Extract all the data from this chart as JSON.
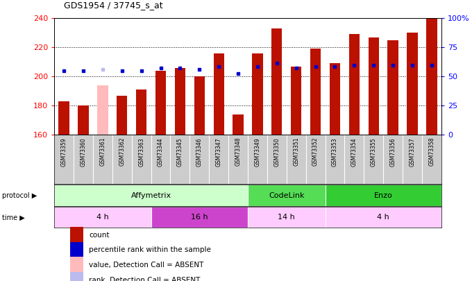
{
  "title": "GDS1954 / 37745_s_at",
  "samples": [
    "GSM73359",
    "GSM73360",
    "GSM73361",
    "GSM73362",
    "GSM73363",
    "GSM73344",
    "GSM73345",
    "GSM73346",
    "GSM73347",
    "GSM73348",
    "GSM73349",
    "GSM73350",
    "GSM73351",
    "GSM73352",
    "GSM73353",
    "GSM73354",
    "GSM73355",
    "GSM73356",
    "GSM73357",
    "GSM73358"
  ],
  "count_values": [
    183,
    180,
    194,
    187,
    191,
    204,
    206,
    200,
    216,
    174,
    216,
    233,
    207,
    219,
    209,
    229,
    227,
    225,
    230,
    240
  ],
  "count_absent": [
    false,
    false,
    true,
    false,
    false,
    false,
    false,
    false,
    false,
    false,
    false,
    false,
    false,
    false,
    false,
    false,
    false,
    false,
    false,
    false
  ],
  "percentile_values": [
    204,
    204,
    205,
    204,
    204,
    206,
    206,
    205,
    207,
    202,
    207,
    209,
    206,
    207,
    207,
    208,
    208,
    208,
    208,
    208
  ],
  "percentile_absent": [
    false,
    false,
    true,
    false,
    false,
    false,
    false,
    false,
    false,
    false,
    false,
    false,
    false,
    false,
    false,
    false,
    false,
    false,
    false,
    false
  ],
  "ylim_min": 160,
  "ylim_max": 240,
  "yticks": [
    160,
    180,
    200,
    220,
    240
  ],
  "right_yticks": [
    0,
    25,
    50,
    75,
    100
  ],
  "hlines": [
    180,
    200,
    220
  ],
  "protocols": [
    {
      "label": "Affymetrix",
      "start": 0,
      "end": 10,
      "color": "#ccffcc"
    },
    {
      "label": "CodeLink",
      "start": 10,
      "end": 14,
      "color": "#55dd55"
    },
    {
      "label": "Enzo",
      "start": 14,
      "end": 20,
      "color": "#33cc33"
    }
  ],
  "times": [
    {
      "label": "4 h",
      "start": 0,
      "end": 5,
      "color": "#ffccff"
    },
    {
      "label": "16 h",
      "start": 5,
      "end": 10,
      "color": "#cc44cc"
    },
    {
      "label": "14 h",
      "start": 10,
      "end": 14,
      "color": "#ffccff"
    },
    {
      "label": "4 h",
      "start": 14,
      "end": 20,
      "color": "#ffccff"
    }
  ],
  "bar_color_normal": "#bb1100",
  "bar_color_absent": "#ffbbbb",
  "dot_color_normal": "#0000cc",
  "dot_color_absent": "#bbbbee",
  "bg_color": "#ffffff",
  "xtick_bg": "#cccccc",
  "legend_items": [
    {
      "label": "count",
      "color": "#bb1100"
    },
    {
      "label": "percentile rank within the sample",
      "color": "#0000cc"
    },
    {
      "label": "value, Detection Call = ABSENT",
      "color": "#ffbbbb"
    },
    {
      "label": "rank, Detection Call = ABSENT",
      "color": "#bbbbee"
    }
  ]
}
